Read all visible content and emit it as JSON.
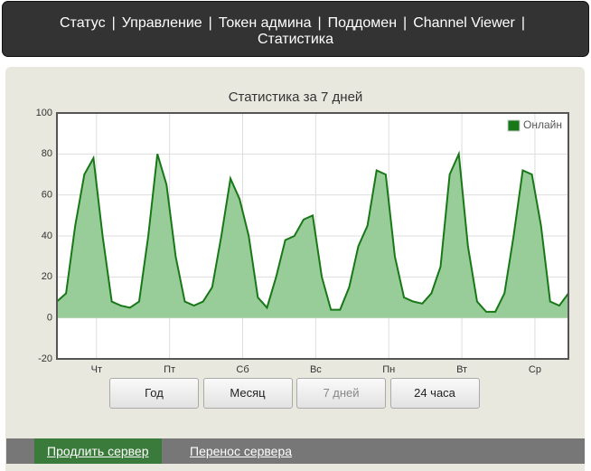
{
  "nav": {
    "items": [
      "Статус",
      "Управление",
      "Токен админа",
      "Поддомен",
      "Channel Viewer",
      "Статистика"
    ],
    "separator": "|"
  },
  "chart_data": {
    "type": "area",
    "title": "Статистика за 7 дней",
    "x": [
      0,
      3,
      6,
      9,
      12,
      15,
      18,
      21,
      24,
      27,
      30,
      33,
      36,
      39,
      42,
      45,
      48,
      51,
      54,
      57,
      60,
      63,
      66,
      69,
      72,
      75,
      78,
      81,
      84,
      87,
      90,
      93,
      96,
      99,
      102,
      105,
      108,
      111,
      114,
      117,
      120,
      123,
      126,
      129,
      132,
      135,
      138,
      141,
      144,
      147,
      150,
      153,
      156,
      159,
      162,
      165,
      168
    ],
    "series": [
      {
        "name": "Онлайн",
        "color": "#187818",
        "fill": "#98cc98",
        "values": [
          8,
          12,
          45,
          70,
          78,
          40,
          8,
          6,
          5,
          8,
          40,
          80,
          65,
          30,
          8,
          6,
          8,
          15,
          40,
          68,
          58,
          40,
          10,
          5,
          20,
          38,
          40,
          48,
          50,
          20,
          4,
          4,
          15,
          35,
          45,
          72,
          70,
          30,
          10,
          8,
          7,
          12,
          25,
          70,
          80,
          35,
          8,
          3,
          3,
          12,
          40,
          72,
          70,
          45,
          8,
          6,
          12
        ]
      }
    ],
    "xlim": [
      0,
      168
    ],
    "xticks": [
      {
        "value": 13,
        "label": "Чт"
      },
      {
        "value": 37,
        "label": "Пт"
      },
      {
        "value": 61,
        "label": "Сб"
      },
      {
        "value": 85,
        "label": "Вс"
      },
      {
        "value": 109,
        "label": "Пн"
      },
      {
        "value": 133,
        "label": "Вт"
      },
      {
        "value": 157,
        "label": "Ср"
      }
    ],
    "ylim": [
      -20,
      100
    ],
    "yticks": [
      -20,
      0,
      20,
      40,
      60,
      80,
      100
    ],
    "grid": true,
    "legend": "top-right"
  },
  "buttons": [
    {
      "label": "Год",
      "disabled": false
    },
    {
      "label": "Месяц",
      "disabled": false
    },
    {
      "label": "7 дней",
      "disabled": true
    },
    {
      "label": "24 часа",
      "disabled": false
    }
  ],
  "footer": {
    "links": [
      "Продлить сервер",
      "Перенос сервера"
    ]
  }
}
